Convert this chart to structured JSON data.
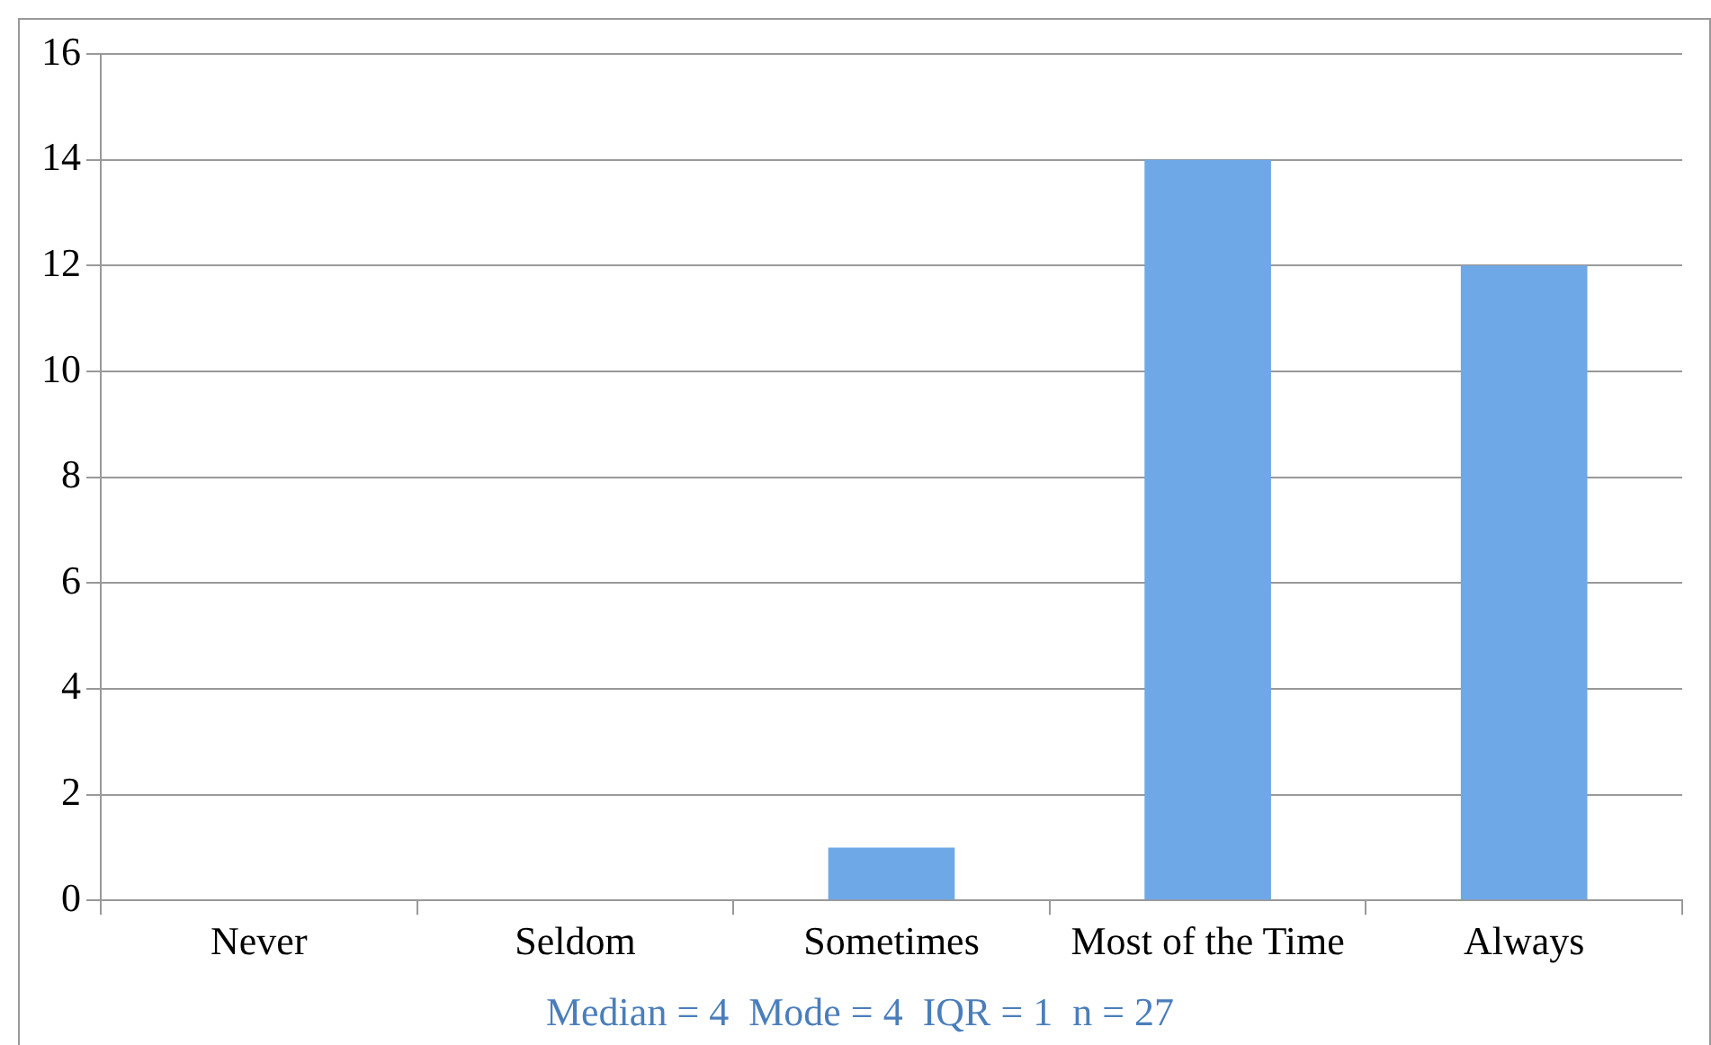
{
  "chart_data": {
    "type": "bar",
    "categories": [
      "Never",
      "Seldom",
      "Sometimes",
      "Most of the Time",
      "Always"
    ],
    "values": [
      0,
      0,
      1,
      14,
      12
    ],
    "color": "#6fa8e6",
    "ylim": [
      0,
      16
    ],
    "yticks": [
      0,
      2,
      4,
      6,
      8,
      10,
      12,
      14,
      16
    ],
    "grid": "y",
    "annotations": [
      "Median = 4  Mode = 4  IQR = 1  n = 27"
    ]
  }
}
